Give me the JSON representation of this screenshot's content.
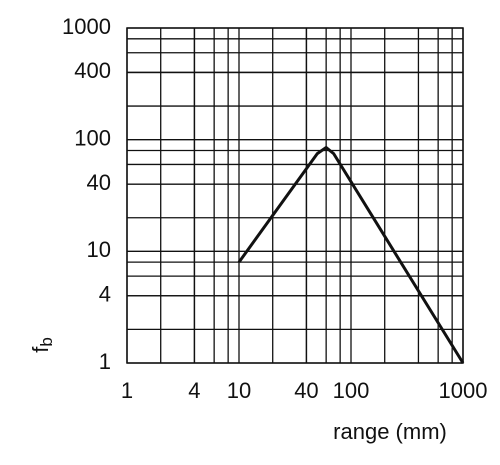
{
  "chart_data": {
    "type": "line",
    "x_label": "range (mm)",
    "y_label": {
      "main": "f",
      "sub": "b"
    },
    "x": [
      10,
      50,
      60,
      70,
      1000
    ],
    "series": [
      {
        "values": [
          8,
          75,
          85,
          75,
          1
        ],
        "color": "#111111"
      }
    ],
    "xscale": "log",
    "yscale": "log",
    "xlim": [
      1,
      1000
    ],
    "ylim": [
      1,
      1000
    ],
    "xticks": [
      1,
      4,
      10,
      40,
      100,
      1000
    ],
    "yticks": [
      1,
      4,
      10,
      40,
      100,
      400,
      1000
    ],
    "grid": true
  }
}
